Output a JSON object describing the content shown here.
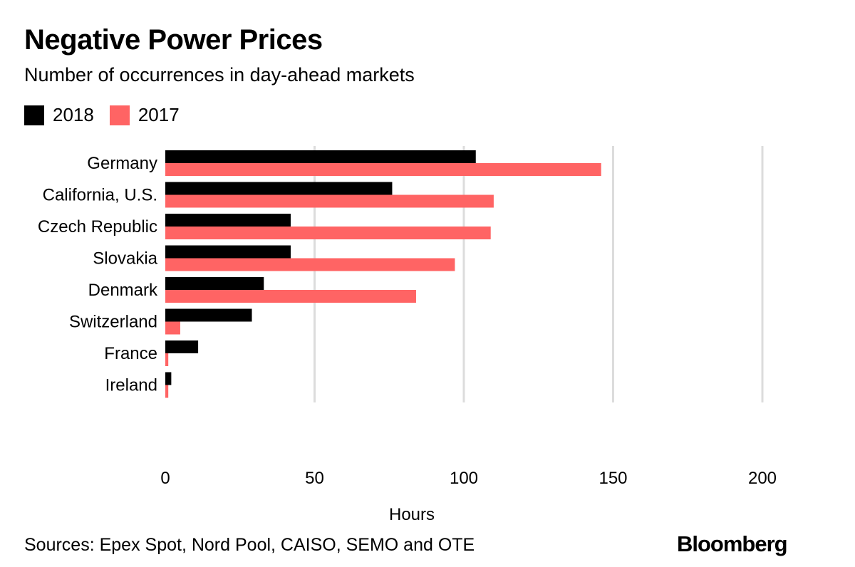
{
  "header": {
    "title": "Negative Power Prices",
    "subtitle": "Number of occurrences in day-ahead markets"
  },
  "footer": {
    "source": "Sources: Epex Spot, Nord Pool, CAISO, SEMO and OTE",
    "logo": "Bloomberg"
  },
  "chart_data": {
    "type": "bar",
    "orientation": "horizontal",
    "title": "Negative Power Prices",
    "subtitle": "Number of occurrences in day-ahead markets",
    "xlabel": "Hours",
    "ylabel": "",
    "xlim": [
      0,
      200
    ],
    "xticks": [
      0,
      50,
      100,
      150,
      200
    ],
    "grid": true,
    "legend_position": "top-left",
    "categories": [
      "Germany",
      "California, U.S.",
      "Czech Republic",
      "Slovakia",
      "Denmark",
      "Switzerland",
      "France",
      "Ireland"
    ],
    "series": [
      {
        "name": "2018",
        "color": "#000000",
        "values": [
          104,
          76,
          42,
          42,
          33,
          29,
          11,
          2
        ]
      },
      {
        "name": "2017",
        "color": "#ff6464",
        "values": [
          146,
          110,
          109,
          97,
          84,
          5,
          1,
          1
        ]
      }
    ]
  }
}
